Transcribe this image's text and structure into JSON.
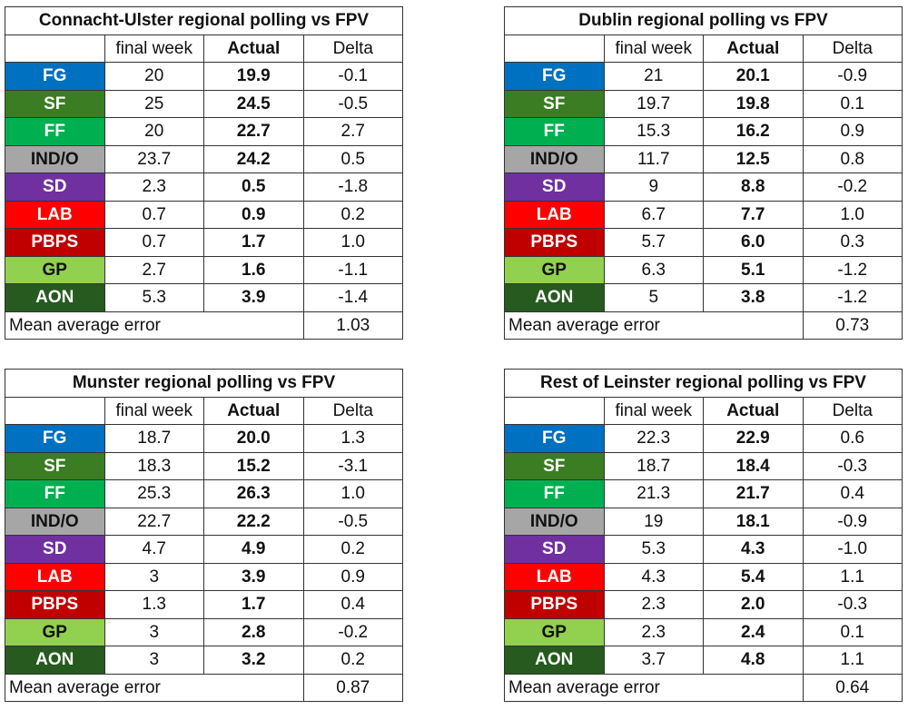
{
  "columns": [
    "",
    "final week",
    "Actual",
    "Delta"
  ],
  "mae_label": "Mean average error",
  "party_colors": {
    "FG": {
      "bg": "#0070C0",
      "fg": "#ffffff"
    },
    "SF": {
      "bg": "#3A7D22",
      "fg": "#ffffff"
    },
    "FF": {
      "bg": "#00B050",
      "fg": "#ffffff"
    },
    "IND/O": {
      "bg": "#A6A6A6",
      "fg": "#111111"
    },
    "SD": {
      "bg": "#7030A0",
      "fg": "#ffffff"
    },
    "LAB": {
      "bg": "#FF0000",
      "fg": "#ffffff"
    },
    "PBPS": {
      "bg": "#C00000",
      "fg": "#ffffff"
    },
    "GP": {
      "bg": "#92D050",
      "fg": "#111111"
    },
    "AON": {
      "bg": "#265A1E",
      "fg": "#ffffff"
    }
  },
  "chart_data": [
    {
      "type": "table",
      "title": "Connacht-Ulster regional polling vs FPV",
      "rows": [
        {
          "party": "FG",
          "final_week": "20",
          "actual": "19.9",
          "delta": "-0.1"
        },
        {
          "party": "SF",
          "final_week": "25",
          "actual": "24.5",
          "delta": "-0.5"
        },
        {
          "party": "FF",
          "final_week": "20",
          "actual": "22.7",
          "delta": "2.7"
        },
        {
          "party": "IND/O",
          "final_week": "23.7",
          "actual": "24.2",
          "delta": "0.5"
        },
        {
          "party": "SD",
          "final_week": "2.3",
          "actual": "0.5",
          "delta": "-1.8"
        },
        {
          "party": "LAB",
          "final_week": "0.7",
          "actual": "0.9",
          "delta": "0.2"
        },
        {
          "party": "PBPS",
          "final_week": "0.7",
          "actual": "1.7",
          "delta": "1.0"
        },
        {
          "party": "GP",
          "final_week": "2.7",
          "actual": "1.6",
          "delta": "-1.1"
        },
        {
          "party": "AON",
          "final_week": "5.3",
          "actual": "3.9",
          "delta": "-1.4"
        }
      ],
      "mean_average_error": "1.03"
    },
    {
      "type": "table",
      "title": "Dublin regional polling vs FPV",
      "rows": [
        {
          "party": "FG",
          "final_week": "21",
          "actual": "20.1",
          "delta": "-0.9"
        },
        {
          "party": "SF",
          "final_week": "19.7",
          "actual": "19.8",
          "delta": "0.1"
        },
        {
          "party": "FF",
          "final_week": "15.3",
          "actual": "16.2",
          "delta": "0.9"
        },
        {
          "party": "IND/O",
          "final_week": "11.7",
          "actual": "12.5",
          "delta": "0.8"
        },
        {
          "party": "SD",
          "final_week": "9",
          "actual": "8.8",
          "delta": "-0.2"
        },
        {
          "party": "LAB",
          "final_week": "6.7",
          "actual": "7.7",
          "delta": "1.0"
        },
        {
          "party": "PBPS",
          "final_week": "5.7",
          "actual": "6.0",
          "delta": "0.3"
        },
        {
          "party": "GP",
          "final_week": "6.3",
          "actual": "5.1",
          "delta": "-1.2"
        },
        {
          "party": "AON",
          "final_week": "5",
          "actual": "3.8",
          "delta": "-1.2"
        }
      ],
      "mean_average_error": "0.73"
    },
    {
      "type": "table",
      "title": "Munster regional polling vs FPV",
      "rows": [
        {
          "party": "FG",
          "final_week": "18.7",
          "actual": "20.0",
          "delta": "1.3"
        },
        {
          "party": "SF",
          "final_week": "18.3",
          "actual": "15.2",
          "delta": "-3.1"
        },
        {
          "party": "FF",
          "final_week": "25.3",
          "actual": "26.3",
          "delta": "1.0"
        },
        {
          "party": "IND/O",
          "final_week": "22.7",
          "actual": "22.2",
          "delta": "-0.5"
        },
        {
          "party": "SD",
          "final_week": "4.7",
          "actual": "4.9",
          "delta": "0.2"
        },
        {
          "party": "LAB",
          "final_week": "3",
          "actual": "3.9",
          "delta": "0.9"
        },
        {
          "party": "PBPS",
          "final_week": "1.3",
          "actual": "1.7",
          "delta": "0.4"
        },
        {
          "party": "GP",
          "final_week": "3",
          "actual": "2.8",
          "delta": "-0.2"
        },
        {
          "party": "AON",
          "final_week": "3",
          "actual": "3.2",
          "delta": "0.2"
        }
      ],
      "mean_average_error": "0.87"
    },
    {
      "type": "table",
      "title": "Rest of Leinster regional polling vs FPV",
      "rows": [
        {
          "party": "FG",
          "final_week": "22.3",
          "actual": "22.9",
          "delta": "0.6"
        },
        {
          "party": "SF",
          "final_week": "18.7",
          "actual": "18.4",
          "delta": "-0.3"
        },
        {
          "party": "FF",
          "final_week": "21.3",
          "actual": "21.7",
          "delta": "0.4"
        },
        {
          "party": "IND/O",
          "final_week": "19",
          "actual": "18.1",
          "delta": "-0.9"
        },
        {
          "party": "SD",
          "final_week": "5.3",
          "actual": "4.3",
          "delta": "-1.0"
        },
        {
          "party": "LAB",
          "final_week": "4.3",
          "actual": "5.4",
          "delta": "1.1"
        },
        {
          "party": "PBPS",
          "final_week": "2.3",
          "actual": "2.0",
          "delta": "-0.3"
        },
        {
          "party": "GP",
          "final_week": "2.3",
          "actual": "2.4",
          "delta": "0.1"
        },
        {
          "party": "AON",
          "final_week": "3.7",
          "actual": "4.8",
          "delta": "1.1"
        }
      ],
      "mean_average_error": "0.64"
    }
  ]
}
